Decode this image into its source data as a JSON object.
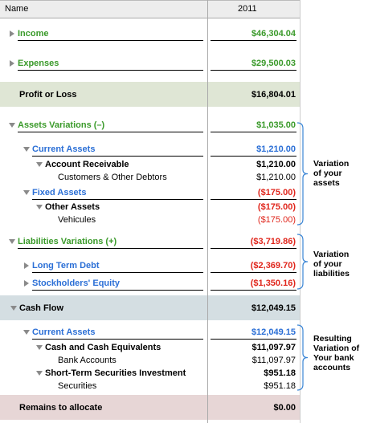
{
  "header": {
    "name": "Name",
    "year": "2011"
  },
  "rows": [
    {
      "label": "Income",
      "value": "$46,304.04"
    },
    {
      "label": "Expenses",
      "value": "$29,500.03"
    },
    {
      "label": "Profit or Loss",
      "value": "$16,804.01"
    },
    {
      "label": "Assets Variations (–)",
      "value": "$1,035.00"
    },
    {
      "label": "Current Assets",
      "value": "$1,210.00"
    },
    {
      "label": "Account Receivable",
      "value": "$1,210.00"
    },
    {
      "label": "Customers & Other Debtors",
      "value": "$1,210.00"
    },
    {
      "label": "Fixed Assets",
      "value": "($175.00)"
    },
    {
      "label": "Other Assets",
      "value": "($175.00)"
    },
    {
      "label": "Vehicules",
      "value": "($175.00)"
    },
    {
      "label": "Liabilities Variations (+)",
      "value": "($3,719.86)"
    },
    {
      "label": "Long Term Debt",
      "value": "($2,369.70)"
    },
    {
      "label": "Stockholders' Equity",
      "value": "($1,350.16)"
    },
    {
      "label": "Cash Flow",
      "value": "$12,049.15"
    },
    {
      "label": "Current Assets",
      "value": "$12,049.15"
    },
    {
      "label": "Cash and Cash Equivalents",
      "value": "$11,097.97"
    },
    {
      "label": "Bank Accounts",
      "value": "$11,097.97"
    },
    {
      "label": "Short-Term Securities Investment",
      "value": "$951.18"
    },
    {
      "label": "Securities",
      "value": "$951.18"
    },
    {
      "label": "Remains to allocate",
      "value": "$0.00"
    }
  ],
  "annotations": [
    {
      "lines": [
        "Variation",
        "of your",
        "assets"
      ]
    },
    {
      "lines": [
        "Variation",
        "of your",
        "liabilities"
      ]
    },
    {
      "lines": [
        "Resulting",
        "Variation of",
        "Your bank",
        "accounts"
      ]
    }
  ]
}
